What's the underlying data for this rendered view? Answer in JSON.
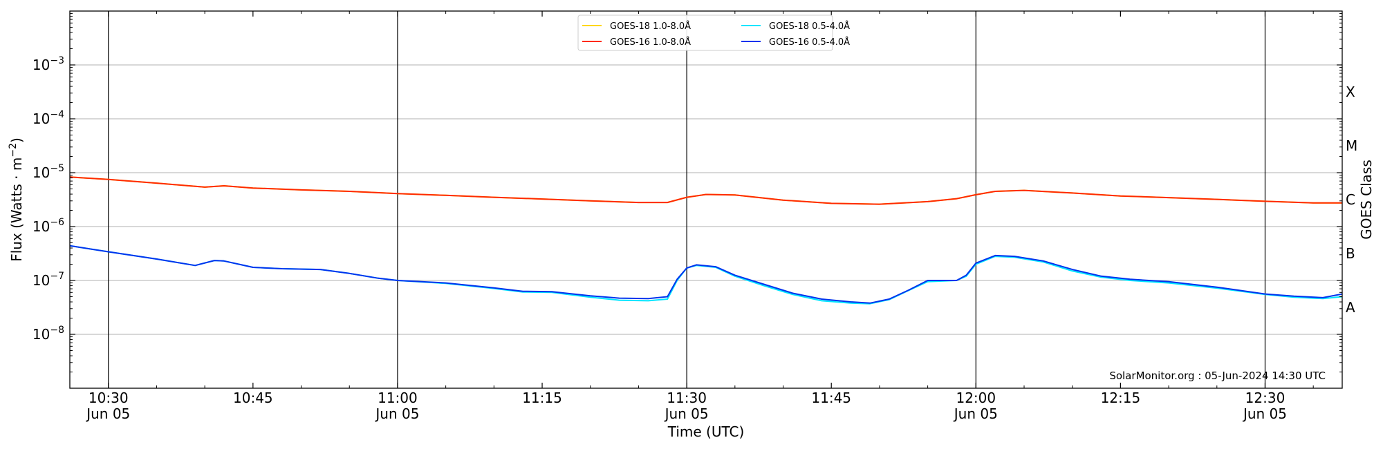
{
  "chart_data": {
    "type": "line",
    "xlabel": "Time (UTC)",
    "ylabel": "Flux (Watts · m",
    "ylabel_sup": "−2",
    "ylabel_close": ")",
    "right_axis_label": "GOES Class",
    "y_scale": "log",
    "ylim": [
      1e-09,
      0.01
    ],
    "x_range": [
      "10:26",
      "12:38"
    ],
    "grid": "horizontal at decades; vertical lines at half hours",
    "legend_placement": "top-center",
    "credit": "SolarMonitor.org : 05-Jun-2024 14:30 UTC",
    "y_ticks": [
      {
        "value": 1e-08,
        "base": "10",
        "exp": "−8"
      },
      {
        "value": 1e-07,
        "base": "10",
        "exp": "−7"
      },
      {
        "value": 1e-06,
        "base": "10",
        "exp": "−6"
      },
      {
        "value": 1e-05,
        "base": "10",
        "exp": "−5"
      },
      {
        "value": 0.0001,
        "base": "10",
        "exp": "−4"
      },
      {
        "value": 0.001,
        "base": "10",
        "exp": "−3"
      }
    ],
    "x_ticks": [
      {
        "time": "10:30",
        "label": "10:30",
        "sub": "Jun 05"
      },
      {
        "time": "10:45",
        "label": "10:45",
        "sub": ""
      },
      {
        "time": "11:00",
        "label": "11:00",
        "sub": "Jun 05"
      },
      {
        "time": "11:15",
        "label": "11:15",
        "sub": ""
      },
      {
        "time": "11:30",
        "label": "11:30",
        "sub": "Jun 05"
      },
      {
        "time": "11:45",
        "label": "11:45",
        "sub": ""
      },
      {
        "time": "12:00",
        "label": "12:00",
        "sub": "Jun 05"
      },
      {
        "time": "12:15",
        "label": "12:15",
        "sub": ""
      },
      {
        "time": "12:30",
        "label": "12:30",
        "sub": "Jun 05"
      }
    ],
    "goes_classes": [
      {
        "label": "X",
        "flux": 0.000316
      },
      {
        "label": "M",
        "flux": 3.16e-05
      },
      {
        "label": "C",
        "flux": 3.16e-06
      },
      {
        "label": "B",
        "flux": 3.16e-07
      },
      {
        "label": "A",
        "flux": 3.16e-08
      }
    ],
    "series": [
      {
        "name": "GOES-18 1.0-8.0Å",
        "color": "#FFD700",
        "points": [
          [
            "10:26",
            8.3e-06
          ],
          [
            "10:30",
            7.5e-06
          ],
          [
            "10:35",
            6.4e-06
          ],
          [
            "10:40",
            5.4e-06
          ],
          [
            "10:42",
            5.7e-06
          ],
          [
            "10:45",
            5.2e-06
          ],
          [
            "10:50",
            4.8e-06
          ],
          [
            "10:55",
            4.5e-06
          ],
          [
            "11:00",
            4.1e-06
          ],
          [
            "11:05",
            3.8e-06
          ],
          [
            "11:10",
            3.5e-06
          ],
          [
            "11:15",
            3.25e-06
          ],
          [
            "11:20",
            3e-06
          ],
          [
            "11:25",
            2.8e-06
          ],
          [
            "11:28",
            2.8e-06
          ],
          [
            "11:30",
            3.5e-06
          ],
          [
            "11:32",
            3.95e-06
          ],
          [
            "11:35",
            3.85e-06
          ],
          [
            "11:40",
            3.1e-06
          ],
          [
            "11:45",
            2.7e-06
          ],
          [
            "11:50",
            2.6e-06
          ],
          [
            "11:55",
            2.9e-06
          ],
          [
            "11:58",
            3.3e-06
          ],
          [
            "12:00",
            3.9e-06
          ],
          [
            "12:02",
            4.5e-06
          ],
          [
            "12:05",
            4.7e-06
          ],
          [
            "12:10",
            4.2e-06
          ],
          [
            "12:15",
            3.7e-06
          ],
          [
            "12:20",
            3.45e-06
          ],
          [
            "12:25",
            3.2e-06
          ],
          [
            "12:30",
            2.95e-06
          ],
          [
            "12:35",
            2.75e-06
          ],
          [
            "12:38",
            2.75e-06
          ]
        ]
      },
      {
        "name": "GOES-16 1.0-8.0Å",
        "color": "#FF2A00",
        "points": [
          [
            "10:26",
            8.3e-06
          ],
          [
            "10:30",
            7.5e-06
          ],
          [
            "10:35",
            6.4e-06
          ],
          [
            "10:40",
            5.4e-06
          ],
          [
            "10:42",
            5.7e-06
          ],
          [
            "10:45",
            5.2e-06
          ],
          [
            "10:50",
            4.8e-06
          ],
          [
            "10:55",
            4.5e-06
          ],
          [
            "11:00",
            4.1e-06
          ],
          [
            "11:05",
            3.8e-06
          ],
          [
            "11:10",
            3.5e-06
          ],
          [
            "11:15",
            3.25e-06
          ],
          [
            "11:20",
            3e-06
          ],
          [
            "11:25",
            2.8e-06
          ],
          [
            "11:28",
            2.8e-06
          ],
          [
            "11:30",
            3.5e-06
          ],
          [
            "11:32",
            3.95e-06
          ],
          [
            "11:35",
            3.85e-06
          ],
          [
            "11:40",
            3.1e-06
          ],
          [
            "11:45",
            2.7e-06
          ],
          [
            "11:50",
            2.6e-06
          ],
          [
            "11:55",
            2.9e-06
          ],
          [
            "11:58",
            3.3e-06
          ],
          [
            "12:00",
            3.9e-06
          ],
          [
            "12:02",
            4.5e-06
          ],
          [
            "12:05",
            4.7e-06
          ],
          [
            "12:10",
            4.2e-06
          ],
          [
            "12:15",
            3.7e-06
          ],
          [
            "12:20",
            3.45e-06
          ],
          [
            "12:25",
            3.2e-06
          ],
          [
            "12:30",
            2.95e-06
          ],
          [
            "12:35",
            2.75e-06
          ],
          [
            "12:38",
            2.75e-06
          ]
        ]
      },
      {
        "name": "GOES-18 0.5-4.0Å",
        "color": "#00E5FF",
        "points": [
          [
            "10:26",
            4.4e-07
          ],
          [
            "10:30",
            3.4e-07
          ],
          [
            "10:35",
            2.5e-07
          ],
          [
            "10:39",
            1.9e-07
          ],
          [
            "10:41",
            2.35e-07
          ],
          [
            "10:42",
            2.3e-07
          ],
          [
            "10:45",
            1.75e-07
          ],
          [
            "10:48",
            1.65e-07
          ],
          [
            "10:52",
            1.6e-07
          ],
          [
            "10:55",
            1.35e-07
          ],
          [
            "10:58",
            1.1e-07
          ],
          [
            "11:00",
            1e-07
          ],
          [
            "11:05",
            8.8e-08
          ],
          [
            "11:10",
            7.1e-08
          ],
          [
            "11:13",
            6.1e-08
          ],
          [
            "11:16",
            6e-08
          ],
          [
            "11:20",
            4.9e-08
          ],
          [
            "11:23",
            4.3e-08
          ],
          [
            "11:26",
            4.2e-08
          ],
          [
            "11:28",
            4.5e-08
          ],
          [
            "11:29",
            1e-07
          ],
          [
            "11:30",
            1.7e-07
          ],
          [
            "11:31",
            1.9e-07
          ],
          [
            "11:33",
            1.75e-07
          ],
          [
            "11:35",
            1.2e-07
          ],
          [
            "11:38",
            8e-08
          ],
          [
            "11:41",
            5.5e-08
          ],
          [
            "11:44",
            4.2e-08
          ],
          [
            "11:47",
            3.8e-08
          ],
          [
            "11:49",
            3.7e-08
          ],
          [
            "11:51",
            4.4e-08
          ],
          [
            "11:53",
            6.5e-08
          ],
          [
            "11:55",
            9.5e-08
          ],
          [
            "11:58",
            1e-07
          ],
          [
            "11:59",
            1.2e-07
          ],
          [
            "12:00",
            2e-07
          ],
          [
            "12:02",
            2.8e-07
          ],
          [
            "12:04",
            2.7e-07
          ],
          [
            "12:07",
            2.2e-07
          ],
          [
            "12:10",
            1.5e-07
          ],
          [
            "12:13",
            1.15e-07
          ],
          [
            "12:16",
            1e-07
          ],
          [
            "12:20",
            9e-08
          ],
          [
            "12:25",
            7.2e-08
          ],
          [
            "12:30",
            5.5e-08
          ],
          [
            "12:33",
            4.9e-08
          ],
          [
            "12:36",
            4.6e-08
          ],
          [
            "12:38",
            5e-08
          ]
        ]
      },
      {
        "name": "GOES-16 0.5-4.0Å",
        "color": "#0033EE",
        "points": [
          [
            "10:26",
            4.4e-07
          ],
          [
            "10:30",
            3.4e-07
          ],
          [
            "10:35",
            2.5e-07
          ],
          [
            "10:39",
            1.9e-07
          ],
          [
            "10:41",
            2.35e-07
          ],
          [
            "10:42",
            2.3e-07
          ],
          [
            "10:45",
            1.75e-07
          ],
          [
            "10:48",
            1.65e-07
          ],
          [
            "10:52",
            1.6e-07
          ],
          [
            "10:55",
            1.35e-07
          ],
          [
            "10:58",
            1.1e-07
          ],
          [
            "11:00",
            1e-07
          ],
          [
            "11:05",
            9e-08
          ],
          [
            "11:10",
            7.3e-08
          ],
          [
            "11:13",
            6.3e-08
          ],
          [
            "11:16",
            6.2e-08
          ],
          [
            "11:20",
            5.2e-08
          ],
          [
            "11:23",
            4.7e-08
          ],
          [
            "11:26",
            4.6e-08
          ],
          [
            "11:28",
            5e-08
          ],
          [
            "11:29",
            1.05e-07
          ],
          [
            "11:30",
            1.7e-07
          ],
          [
            "11:31",
            1.95e-07
          ],
          [
            "11:33",
            1.8e-07
          ],
          [
            "11:35",
            1.25e-07
          ],
          [
            "11:38",
            8.5e-08
          ],
          [
            "11:41",
            5.8e-08
          ],
          [
            "11:44",
            4.5e-08
          ],
          [
            "11:47",
            4e-08
          ],
          [
            "11:49",
            3.8e-08
          ],
          [
            "11:51",
            4.5e-08
          ],
          [
            "11:53",
            6.6e-08
          ],
          [
            "11:55",
            1e-07
          ],
          [
            "11:58",
            1e-07
          ],
          [
            "11:59",
            1.25e-07
          ],
          [
            "12:00",
            2.1e-07
          ],
          [
            "12:02",
            2.9e-07
          ],
          [
            "12:04",
            2.8e-07
          ],
          [
            "12:07",
            2.3e-07
          ],
          [
            "12:10",
            1.6e-07
          ],
          [
            "12:13",
            1.2e-07
          ],
          [
            "12:16",
            1.05e-07
          ],
          [
            "12:20",
            9.5e-08
          ],
          [
            "12:25",
            7.5e-08
          ],
          [
            "12:30",
            5.6e-08
          ],
          [
            "12:33",
            5.1e-08
          ],
          [
            "12:36",
            4.8e-08
          ],
          [
            "12:38",
            5.6e-08
          ]
        ]
      }
    ]
  }
}
